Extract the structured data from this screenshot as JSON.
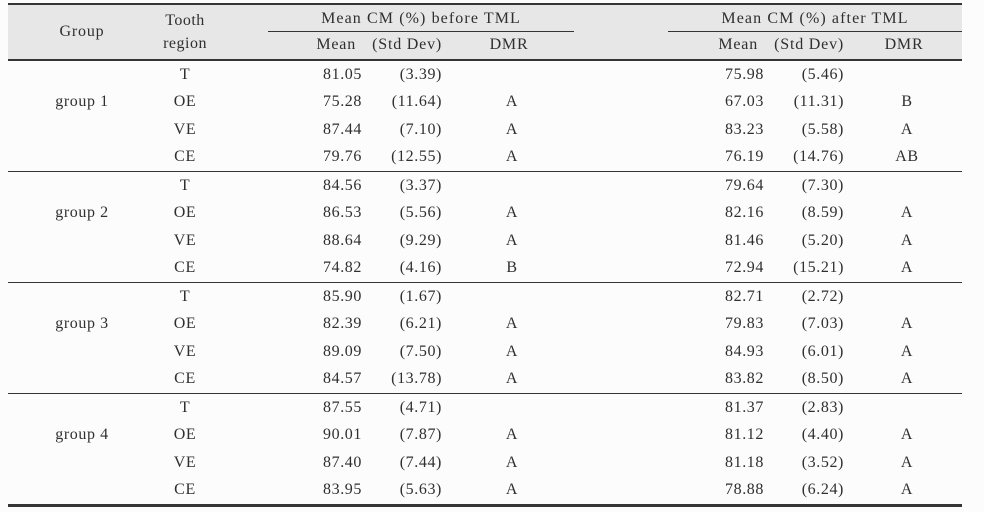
{
  "colors": {
    "header_bg": "#e7e7e7",
    "text": "#2f2f2f",
    "line": "#353535",
    "page_bg": "#fcfcfc"
  },
  "table": {
    "header": {
      "group": "Group",
      "tooth_line1": "Tooth",
      "tooth_line2": "region",
      "before_title": "Mean CM (%) before TML",
      "after_title": "Mean CM (%) after TML",
      "sub_mean": "Mean",
      "sub_std": "(Std Dev)",
      "sub_dmr": "DMR"
    },
    "groups": [
      {
        "label": "group 1",
        "rows": [
          {
            "region": "T",
            "before_mean": "81.05",
            "before_std": "(3.39)",
            "before_dmr": "",
            "after_mean": "75.98",
            "after_std": "(5.46)",
            "after_dmr": ""
          },
          {
            "region": "OE",
            "before_mean": "75.28",
            "before_std": "(11.64)",
            "before_dmr": "A",
            "after_mean": "67.03",
            "after_std": "(11.31)",
            "after_dmr": "B"
          },
          {
            "region": "VE",
            "before_mean": "87.44",
            "before_std": "(7.10)",
            "before_dmr": "A",
            "after_mean": "83.23",
            "after_std": "(5.58)",
            "after_dmr": "A"
          },
          {
            "region": "CE",
            "before_mean": "79.76",
            "before_std": "(12.55)",
            "before_dmr": "A",
            "after_mean": "76.19",
            "after_std": "(14.76)",
            "after_dmr": "AB"
          }
        ]
      },
      {
        "label": "group 2",
        "rows": [
          {
            "region": "T",
            "before_mean": "84.56",
            "before_std": "(3.37)",
            "before_dmr": "",
            "after_mean": "79.64",
            "after_std": "(7.30)",
            "after_dmr": ""
          },
          {
            "region": "OE",
            "before_mean": "86.53",
            "before_std": "(5.56)",
            "before_dmr": "A",
            "after_mean": "82.16",
            "after_std": "(8.59)",
            "after_dmr": "A"
          },
          {
            "region": "VE",
            "before_mean": "88.64",
            "before_std": "(9.29)",
            "before_dmr": "A",
            "after_mean": "81.46",
            "after_std": "(5.20)",
            "after_dmr": "A"
          },
          {
            "region": "CE",
            "before_mean": "74.82",
            "before_std": "(4.16)",
            "before_dmr": "B",
            "after_mean": "72.94",
            "after_std": "(15.21)",
            "after_dmr": "A"
          }
        ]
      },
      {
        "label": "group 3",
        "rows": [
          {
            "region": "T",
            "before_mean": "85.90",
            "before_std": "(1.67)",
            "before_dmr": "",
            "after_mean": "82.71",
            "after_std": "(2.72)",
            "after_dmr": ""
          },
          {
            "region": "OE",
            "before_mean": "82.39",
            "before_std": "(6.21)",
            "before_dmr": "A",
            "after_mean": "79.83",
            "after_std": "(7.03)",
            "after_dmr": "A"
          },
          {
            "region": "VE",
            "before_mean": "89.09",
            "before_std": "(7.50)",
            "before_dmr": "A",
            "after_mean": "84.93",
            "after_std": "(6.01)",
            "after_dmr": "A"
          },
          {
            "region": "CE",
            "before_mean": "84.57",
            "before_std": "(13.78)",
            "before_dmr": "A",
            "after_mean": "83.82",
            "after_std": "(8.50)",
            "after_dmr": "A"
          }
        ]
      },
      {
        "label": "group 4",
        "rows": [
          {
            "region": "T",
            "before_mean": "87.55",
            "before_std": "(4.71)",
            "before_dmr": "",
            "after_mean": "81.37",
            "after_std": "(2.83)",
            "after_dmr": ""
          },
          {
            "region": "OE",
            "before_mean": "90.01",
            "before_std": "(7.87)",
            "before_dmr": "A",
            "after_mean": "81.12",
            "after_std": "(4.40)",
            "after_dmr": "A"
          },
          {
            "region": "VE",
            "before_mean": "87.40",
            "before_std": "(7.44)",
            "before_dmr": "A",
            "after_mean": "81.18",
            "after_std": "(3.52)",
            "after_dmr": "A"
          },
          {
            "region": "CE",
            "before_mean": "83.95",
            "before_std": "(5.63)",
            "before_dmr": "A",
            "after_mean": "78.88",
            "after_std": "(6.24)",
            "after_dmr": "A"
          }
        ]
      }
    ]
  }
}
